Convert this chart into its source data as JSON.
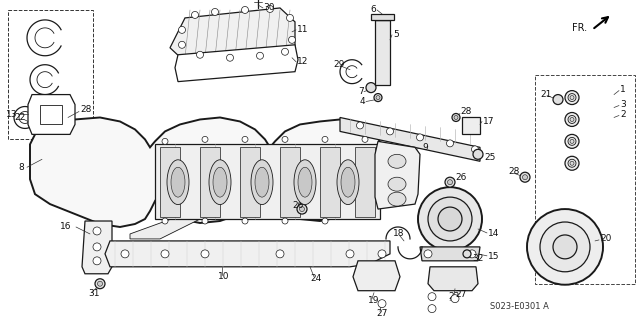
{
  "bg_color": "#ffffff",
  "fig_width": 6.4,
  "fig_height": 3.19,
  "dpi": 100,
  "diagram_code": "S023-E0301 A",
  "fr_label": "FR.",
  "line_color": "#1a1a1a",
  "label_color": "#111111",
  "label_fontsize": 6.5
}
